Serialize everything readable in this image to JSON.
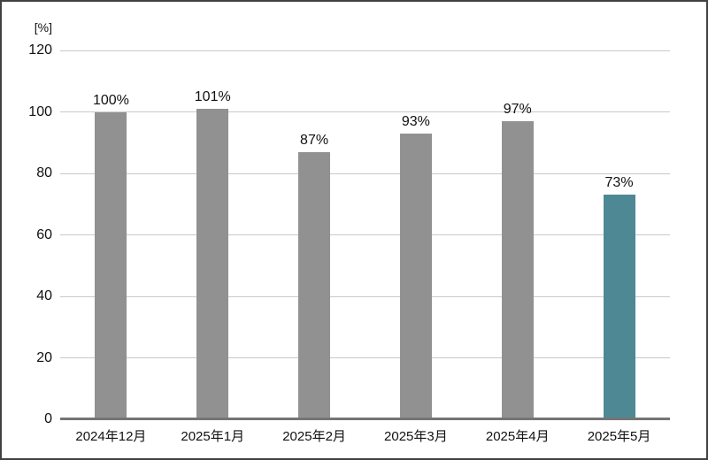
{
  "chart_data": {
    "type": "bar",
    "title": "",
    "unit_label": "[%]",
    "categories": [
      "2024年12月",
      "2025年1月",
      "2025年2月",
      "2025年3月",
      "2025年4月",
      "2025年5月"
    ],
    "values": [
      100,
      101,
      87,
      93,
      97,
      73
    ],
    "bar_labels": [
      "100%",
      "101%",
      "87%",
      "93%",
      "97%",
      "73%"
    ],
    "highlighted_index": 5,
    "ylim": [
      0,
      120
    ],
    "yticks": [
      0,
      20,
      40,
      60,
      80,
      100,
      120
    ],
    "grid": true,
    "legend_position": "none",
    "colors": {
      "bar_default": "#919191",
      "bar_highlight": "#4e8894",
      "gridline": "#c9c9c9",
      "axis": "#757575",
      "text": "#111111",
      "background": "#ffffff",
      "border": "#414141"
    }
  }
}
